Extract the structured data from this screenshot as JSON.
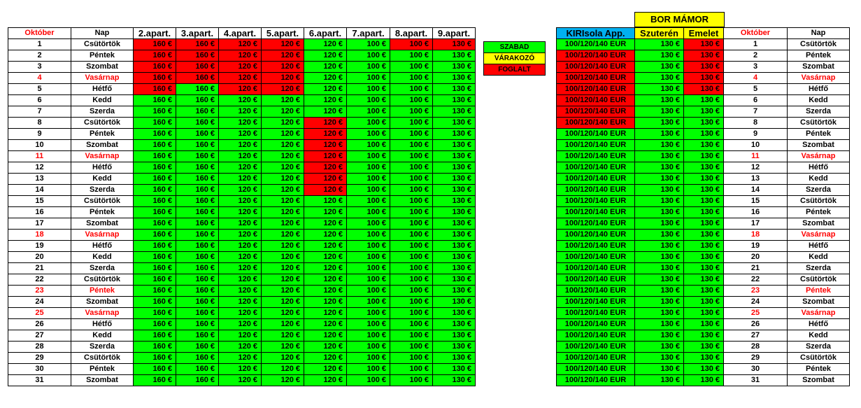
{
  "main": {
    "headers": [
      "Október",
      "Nap",
      "2.apart.",
      "3.apart.",
      "4.apart.",
      "5.apart.",
      "6.apart.",
      "7.apart.",
      "8.apart.",
      "9.apart."
    ],
    "prices": [
      "160 €",
      "160 €",
      "120 €",
      "120 €",
      "120 €",
      "100 €",
      "100 €",
      "130 €"
    ]
  },
  "legend": {
    "free": "SZABAD",
    "waiting": "VÁRAKOZÓ",
    "booked": "FOGLALT"
  },
  "right": {
    "bor_title": "BOR  MÁMOR",
    "headers": [
      "KIRIsola App.",
      "Szuterén",
      "Emelet",
      "Október",
      "Nap"
    ],
    "kiri_price": "100/120/140 EUR",
    "bor_price": "130 €"
  },
  "status_colors": {
    "free": "#00ff00",
    "booked": "#ff0000",
    "waiting": "#ffff00",
    "header_blue": "#00b0f0",
    "holiday_text": "#ff0000"
  },
  "days": [
    {
      "n": "1",
      "d": "Csütörtök"
    },
    {
      "n": "2",
      "d": "Péntek"
    },
    {
      "n": "3",
      "d": "Szombat"
    },
    {
      "n": "4",
      "d": "Vasárnap",
      "red": true
    },
    {
      "n": "5",
      "d": "Hétfő"
    },
    {
      "n": "6",
      "d": "Kedd"
    },
    {
      "n": "7",
      "d": "Szerda"
    },
    {
      "n": "8",
      "d": "Csütörtök"
    },
    {
      "n": "9",
      "d": "Péntek"
    },
    {
      "n": "10",
      "d": "Szombat"
    },
    {
      "n": "11",
      "d": "Vasárnap",
      "red": true
    },
    {
      "n": "12",
      "d": "Hétfő"
    },
    {
      "n": "13",
      "d": "Kedd"
    },
    {
      "n": "14",
      "d": "Szerda"
    },
    {
      "n": "15",
      "d": "Csütörtök"
    },
    {
      "n": "16",
      "d": "Péntek"
    },
    {
      "n": "17",
      "d": "Szombat"
    },
    {
      "n": "18",
      "d": "Vasárnap",
      "red": true
    },
    {
      "n": "19",
      "d": "Hétfő"
    },
    {
      "n": "20",
      "d": "Kedd"
    },
    {
      "n": "21",
      "d": "Szerda"
    },
    {
      "n": "22",
      "d": "Csütörtök"
    },
    {
      "n": "23",
      "d": "Péntek",
      "red": true
    },
    {
      "n": "24",
      "d": "Szombat"
    },
    {
      "n": "25",
      "d": "Vasárnap",
      "red": true
    },
    {
      "n": "26",
      "d": "Hétfő"
    },
    {
      "n": "27",
      "d": "Kedd"
    },
    {
      "n": "28",
      "d": "Szerda"
    },
    {
      "n": "29",
      "d": "Csütörtök"
    },
    {
      "n": "30",
      "d": "Péntek"
    },
    {
      "n": "31",
      "d": "Szombat"
    }
  ],
  "apartment_status": [
    "RRRRGGRR",
    "RRRRGGGG",
    "RRRRGGGG",
    "RRRRGGGG",
    "RGRRGGGG",
    "GGGGGGGG",
    "GGGGGGGG",
    "GGGGRGGG",
    "GGGGRGGG",
    "GGGGRGGG",
    "GGGGRGGG",
    "GGGGRGGG",
    "GGGGRGGG",
    "GGGGRGGG",
    "GGGGGGGG",
    "GGGGGGGG",
    "GGGGGGGG",
    "GGGGGGGG",
    "GGGGGGGG",
    "GGGGGGGG",
    "GGGGGGGG",
    "GGGGGGGG",
    "GGGGGGGG",
    "GGGGGGGG",
    "GGGGGGGG",
    "GGGGGGGG",
    "GGGGGGGG",
    "GGGGGGGG",
    "GGGGGGGG",
    "GGGGGGGG",
    "GGGGGGGG"
  ],
  "right_status": [
    "GGR",
    "RGR",
    "RGR",
    "RGR",
    "RGR",
    "RGG",
    "RGG",
    "RGG",
    "GGG",
    "GGG",
    "GGG",
    "GGG",
    "GGG",
    "GGG",
    "GGG",
    "GGG",
    "GGG",
    "GGG",
    "GGG",
    "GGG",
    "GGG",
    "GGG",
    "GGG",
    "GGG",
    "GGG",
    "GGG",
    "GGG",
    "GGG",
    "GGG",
    "GGG",
    "GGG"
  ]
}
